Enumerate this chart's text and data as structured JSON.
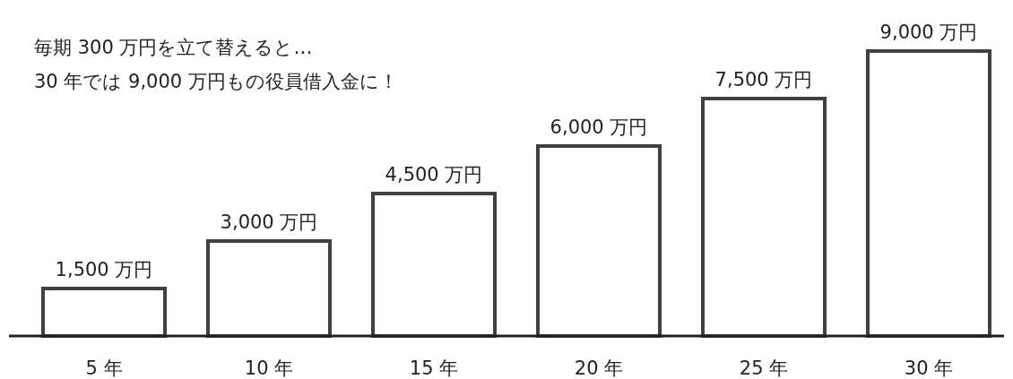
{
  "chart_data": {
    "type": "bar",
    "title": "毎期 300 万円を立て替えると…",
    "subtitle": "30 年では 9,000 万円もの役員借入金に！",
    "categories": [
      "5 年",
      "10 年",
      "15 年",
      "20 年",
      "25 年",
      "30 年"
    ],
    "values": [
      1500,
      3000,
      4500,
      6000,
      7500,
      9000
    ],
    "value_labels": [
      "1,500 万円",
      "3,000 万円",
      "4,500 万円",
      "6,000 万円",
      "7,500 万円",
      "9,000 万円"
    ],
    "color": "#404040"
  }
}
